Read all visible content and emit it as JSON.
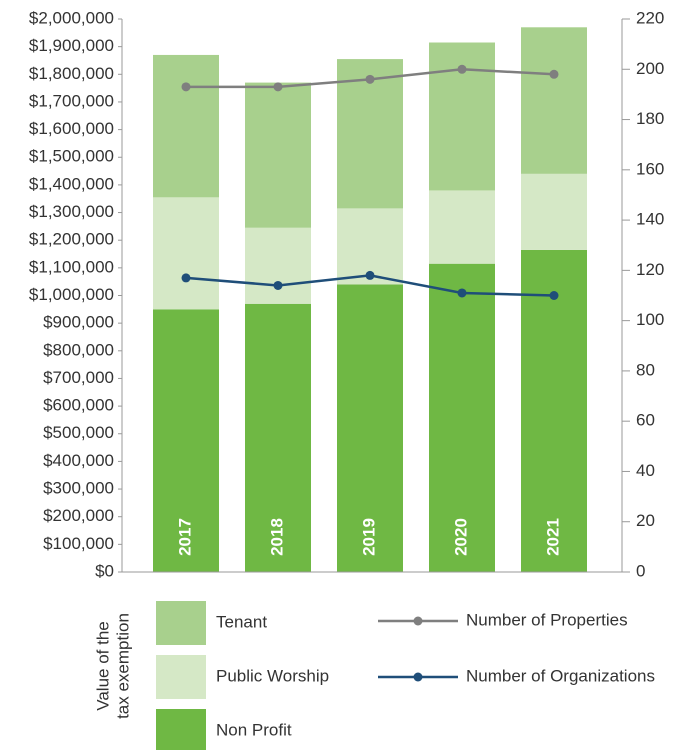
{
  "chart_data": {
    "type": "bar",
    "stacked": true,
    "categories": [
      "2017",
      "2018",
      "2019",
      "2020",
      "2021"
    ],
    "series": [
      {
        "name": "Non Profit",
        "color": "#6fb844",
        "values": [
          950000,
          970000,
          1040000,
          1115000,
          1165000
        ]
      },
      {
        "name": "Public Worship",
        "color": "#d5e8c6",
        "values": [
          405000,
          275000,
          275000,
          265000,
          275000
        ]
      },
      {
        "name": "Tenant",
        "color": "#a8d08d",
        "values": [
          515000,
          525000,
          540000,
          535000,
          530000
        ]
      },
      {
        "name": "Number of Properties",
        "type": "line",
        "axis": "y2",
        "color": "#7f7f7f",
        "values": [
          193,
          193,
          196,
          200,
          198
        ]
      },
      {
        "name": "Number of Organizations",
        "type": "line",
        "axis": "y2",
        "color": "#1f4e79",
        "values": [
          117,
          114,
          118,
          111,
          110
        ]
      }
    ],
    "legend_title": [
      "Value of the",
      "tax exemption"
    ],
    "ylim": [
      0,
      2000000
    ],
    "yticks": [
      {
        "value": 0,
        "label": "$0"
      },
      {
        "value": 100000,
        "label": "$100,000"
      },
      {
        "value": 200000,
        "label": "$200,000"
      },
      {
        "value": 300000,
        "label": "$300,000"
      },
      {
        "value": 400000,
        "label": "$400,000"
      },
      {
        "value": 500000,
        "label": "$500,000"
      },
      {
        "value": 600000,
        "label": "$600,000"
      },
      {
        "value": 700000,
        "label": "$700,000"
      },
      {
        "value": 800000,
        "label": "$800,000"
      },
      {
        "value": 900000,
        "label": "$900,000"
      },
      {
        "value": 1000000,
        "label": "$1,000,000"
      },
      {
        "value": 1100000,
        "label": "$1,100,000"
      },
      {
        "value": 1200000,
        "label": "$1,200,000"
      },
      {
        "value": 1300000,
        "label": "$1,300,000"
      },
      {
        "value": 1400000,
        "label": "$1,400,000"
      },
      {
        "value": 1500000,
        "label": "$1,500,000"
      },
      {
        "value": 1600000,
        "label": "$1,600,000"
      },
      {
        "value": 1700000,
        "label": "$1,700,000"
      },
      {
        "value": 1800000,
        "label": "$1,800,000"
      },
      {
        "value": 1900000,
        "label": "$1,900,000"
      },
      {
        "value": 2000000,
        "label": "$2,000,000"
      }
    ],
    "y2lim": [
      0,
      220
    ],
    "y2ticks": [
      0,
      20,
      40,
      60,
      80,
      100,
      120,
      140,
      160,
      180,
      200,
      220
    ]
  }
}
